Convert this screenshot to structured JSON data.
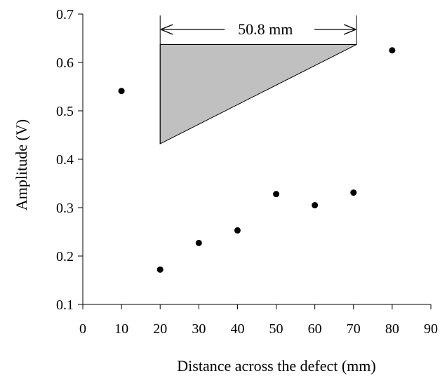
{
  "chart_data": {
    "type": "scatter",
    "xlabel": "Distance across the defect (mm)",
    "ylabel": "Amplitude (V)",
    "xlim": [
      0,
      90
    ],
    "ylim": [
      0.1,
      0.7
    ],
    "x_ticks": [
      0,
      10,
      20,
      30,
      40,
      50,
      60,
      70,
      80,
      90
    ],
    "y_ticks": [
      "0.1",
      "0.2",
      "0.3",
      "0.4",
      "0.5",
      "0.6",
      "0.7"
    ],
    "grid": false,
    "points": [
      {
        "x": 10,
        "y": 0.541
      },
      {
        "x": 20,
        "y": 0.172
      },
      {
        "x": 30,
        "y": 0.227
      },
      {
        "x": 40,
        "y": 0.253
      },
      {
        "x": 50,
        "y": 0.328
      },
      {
        "x": 60,
        "y": 0.305
      },
      {
        "x": 70,
        "y": 0.331
      },
      {
        "x": 80,
        "y": 0.625
      }
    ],
    "annotation": {
      "label": "50.8 mm",
      "arrow_x": [
        20,
        70.8
      ],
      "triangle": [
        [
          20,
          0.637
        ],
        [
          70.8,
          0.637
        ],
        [
          20,
          0.432
        ]
      ],
      "fill": "#c0c0c0"
    },
    "colors": {
      "points": "#000000",
      "axis": "#000000"
    }
  }
}
